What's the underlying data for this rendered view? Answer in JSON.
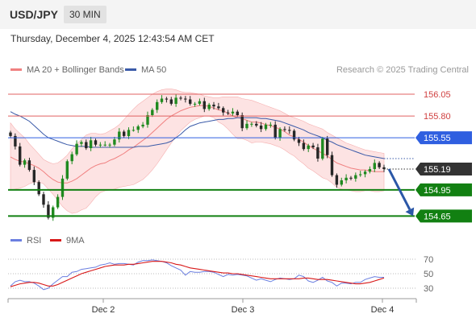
{
  "header": {
    "pair": "USD/JPY",
    "timeframe": "30 MIN"
  },
  "timestamp": "Thursday, December 4, 2025 12:43:54 AM CET",
  "legend": {
    "ma20_label": "MA 20 + Bollinger Bands",
    "ma50_label": "MA 50",
    "credit": "Research © 2025 Trading Central",
    "colors": {
      "ma20": "#f08080",
      "ma50": "#3a5aa8"
    }
  },
  "rsi_legend": {
    "rsi_label": "RSI",
    "ma9_label": "9MA",
    "colors": {
      "rsi": "#6b7fe0",
      "ma9": "#d81818"
    }
  },
  "chart_data": [
    {
      "type": "candlestick",
      "title": "",
      "x_ticks": [
        "Dec 2",
        "Dec 3",
        "Dec 4"
      ],
      "ylim": [
        154.57,
        156.18
      ],
      "levels": [
        {
          "value": 156.05,
          "label": "156.05",
          "kind": "resistance",
          "color": "#e06060"
        },
        {
          "value": 155.8,
          "label": "155.80",
          "kind": "resistance",
          "color": "#e06060"
        },
        {
          "value": 155.55,
          "label": "155.55",
          "kind": "pivot",
          "color": "#2f5fe0"
        },
        {
          "value": 154.95,
          "label": "154.95",
          "kind": "support",
          "color": "#128012"
        },
        {
          "value": 154.65,
          "label": "154.65",
          "kind": "support",
          "color": "#128012"
        }
      ],
      "last_price": {
        "value": 155.19,
        "label": "155.19"
      },
      "projection": {
        "from": 155.19,
        "to": 154.65,
        "direction": "down"
      },
      "series": [
        {
          "name": "Price",
          "close": [
            155.57,
            155.45,
            155.24,
            155.29,
            155.18,
            155.04,
            154.9,
            154.78,
            154.63,
            154.75,
            154.87,
            155.08,
            155.28,
            155.36,
            155.48,
            155.5,
            155.43,
            155.52,
            155.47,
            155.47,
            155.47,
            155.47,
            155.53,
            155.62,
            155.57,
            155.64,
            155.64,
            155.68,
            155.7,
            155.81,
            155.87,
            155.96,
            156.0,
            155.99,
            155.94,
            156.01,
            156.0,
            155.99,
            155.94,
            155.94,
            155.97,
            155.88,
            155.93,
            155.91,
            155.89,
            155.84,
            155.83,
            155.85,
            155.81,
            155.66,
            155.71,
            155.71,
            155.69,
            155.65,
            155.7,
            155.7,
            155.55,
            155.65,
            155.64,
            155.63,
            155.53,
            155.49,
            155.42,
            155.46,
            155.44,
            155.31,
            155.54,
            155.35,
            155.12,
            155.01,
            155.06,
            155.09,
            155.08,
            155.12,
            155.13,
            155.16,
            155.19,
            155.26,
            155.21,
            155.19
          ]
        },
        {
          "name": "MA 20",
          "values": [
            155.33,
            155.3,
            155.28,
            155.27,
            155.25,
            155.23,
            155.2,
            155.16,
            155.11,
            155.07,
            155.04,
            155.03,
            155.03,
            155.05,
            155.08,
            155.12,
            155.16,
            155.2,
            155.23,
            155.25,
            155.26,
            155.29,
            155.31,
            155.34,
            155.37,
            155.41,
            155.44,
            155.48,
            155.52,
            155.56,
            155.61,
            155.66,
            155.71,
            155.76,
            155.8,
            155.83,
            155.86,
            155.88,
            155.9,
            155.91,
            155.92,
            155.92,
            155.91,
            155.89,
            155.87,
            155.86,
            155.83,
            155.8,
            155.78,
            155.77,
            155.75,
            155.73,
            155.73,
            155.72,
            155.7,
            155.69,
            155.67,
            155.65,
            155.62,
            155.58,
            155.56,
            155.53,
            155.5,
            155.46,
            155.43,
            155.4,
            155.37,
            155.34,
            155.3,
            155.26,
            155.24,
            155.22,
            155.2,
            155.19,
            155.18,
            155.18,
            155.17,
            155.16,
            155.16,
            155.16
          ]
        },
        {
          "name": "MA 50",
          "values": [
            155.85,
            155.82,
            155.8,
            155.77,
            155.74,
            155.69,
            155.64,
            155.59,
            155.55,
            155.53,
            155.51,
            155.49,
            155.47,
            155.46,
            155.45,
            155.45,
            155.45,
            155.44,
            155.44,
            155.44,
            155.44,
            155.44,
            155.44,
            155.44,
            155.44,
            155.44,
            155.44,
            155.45,
            155.45,
            155.45,
            155.46,
            155.47,
            155.48,
            155.49,
            155.51,
            155.55,
            155.59,
            155.64,
            155.68,
            155.7,
            155.72,
            155.73,
            155.74,
            155.75,
            155.76,
            155.76,
            155.77,
            155.77,
            155.78,
            155.78,
            155.78,
            155.78,
            155.78,
            155.77,
            155.77,
            155.76,
            155.75,
            155.74,
            155.72,
            155.7,
            155.68,
            155.66,
            155.64,
            155.61,
            155.59,
            155.57,
            155.55,
            155.52,
            155.5,
            155.47,
            155.45,
            155.43,
            155.41,
            155.39,
            155.37,
            155.35,
            155.34,
            155.33,
            155.32,
            155.31
          ]
        },
        {
          "name": "BB Upper",
          "values": [
            155.72,
            155.65,
            155.6,
            155.55,
            155.48,
            155.42,
            155.36,
            155.3,
            155.27,
            155.25,
            155.26,
            155.3,
            155.35,
            155.42,
            155.48,
            155.53,
            155.58,
            155.6,
            155.6,
            155.59,
            155.6,
            155.63,
            155.66,
            155.7,
            155.76,
            155.82,
            155.88,
            155.93,
            155.97,
            156.01,
            156.05,
            156.08,
            156.1,
            156.11,
            156.11,
            156.1,
            156.08,
            156.07,
            156.07,
            156.06,
            156.05,
            156.03,
            156.02,
            156.01,
            156.01,
            156.02,
            156.02,
            156.02,
            156.02,
            156.0,
            155.99,
            155.98,
            155.96,
            155.94,
            155.92,
            155.9,
            155.88,
            155.86,
            155.83,
            155.8,
            155.78,
            155.76,
            155.74,
            155.71,
            155.69,
            155.67,
            155.65,
            155.61,
            155.58,
            155.55,
            155.52,
            155.49,
            155.47,
            155.45,
            155.43,
            155.41,
            155.4,
            155.39,
            155.38,
            155.37
          ]
        },
        {
          "name": "BB Lower",
          "values": [
            154.95,
            154.96,
            154.97,
            154.99,
            155.02,
            155.04,
            155.04,
            155.02,
            154.96,
            154.9,
            154.83,
            154.76,
            154.71,
            154.68,
            154.69,
            154.72,
            154.74,
            154.8,
            154.87,
            154.92,
            154.94,
            154.95,
            154.96,
            154.98,
            154.99,
            155.0,
            155.01,
            155.04,
            155.07,
            155.12,
            155.18,
            155.25,
            155.33,
            155.41,
            155.49,
            155.56,
            155.63,
            155.68,
            155.73,
            155.76,
            155.78,
            155.8,
            155.8,
            155.78,
            155.73,
            155.7,
            155.65,
            155.59,
            155.54,
            155.54,
            155.52,
            155.49,
            155.5,
            155.5,
            155.49,
            155.48,
            155.46,
            155.44,
            155.41,
            155.37,
            155.34,
            155.29,
            155.25,
            155.2,
            155.17,
            155.13,
            155.09,
            155.07,
            155.03,
            154.98,
            154.96,
            154.95,
            154.94,
            154.93,
            154.93,
            154.94,
            154.94,
            154.93,
            154.93,
            154.94
          ]
        }
      ]
    },
    {
      "type": "line",
      "title": "",
      "ylim": [
        20,
        80
      ],
      "y_ticks": [
        70,
        50,
        30
      ],
      "series": [
        {
          "name": "RSI",
          "values": [
            33,
            39,
            41,
            39,
            39,
            37,
            33,
            28,
            30,
            36,
            41,
            46,
            46,
            52,
            53,
            56,
            57,
            58,
            59,
            62,
            63,
            65,
            63,
            64,
            64,
            63,
            62,
            66,
            68,
            68,
            69,
            68,
            67,
            65,
            61,
            58,
            55,
            48,
            53,
            52,
            52,
            53,
            53,
            52,
            49,
            46,
            49,
            48,
            49,
            48,
            47,
            44,
            41,
            43,
            41,
            39,
            42,
            44,
            43,
            42,
            43,
            48,
            46,
            40,
            38,
            41,
            45,
            40,
            38,
            33,
            37,
            37,
            36,
            38,
            38,
            42,
            44,
            46,
            45,
            45
          ]
        },
        {
          "name": "9MA",
          "values": [
            32,
            34,
            36,
            37,
            38,
            38,
            37,
            35,
            33,
            33,
            35,
            38,
            41,
            44,
            47,
            50,
            52,
            54,
            56,
            58,
            60,
            61,
            62,
            62,
            62,
            63,
            63,
            64,
            65,
            66,
            67,
            67,
            67,
            66,
            65,
            63,
            62,
            60,
            58,
            57,
            56,
            55,
            54,
            53,
            52,
            51,
            51,
            50,
            50,
            49,
            48,
            47,
            46,
            45,
            44,
            43,
            43,
            43,
            43,
            43,
            43,
            43,
            44,
            44,
            43,
            42,
            42,
            42,
            41,
            40,
            39,
            38,
            37,
            36,
            36,
            37,
            38,
            40,
            42,
            44
          ]
        }
      ]
    }
  ]
}
